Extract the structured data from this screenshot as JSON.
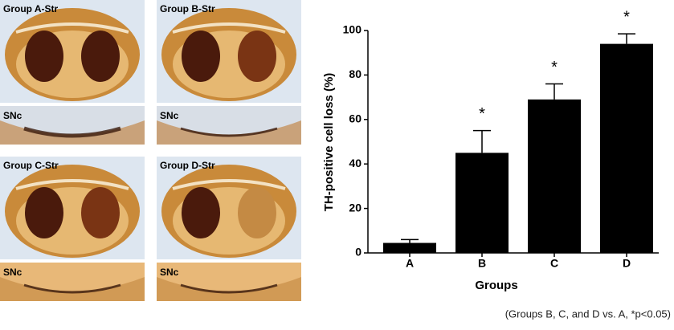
{
  "panels": [
    {
      "label": "Group A-Str",
      "sub": "SNc"
    },
    {
      "label": "Group B-Str",
      "sub": "SNc"
    },
    {
      "label": "Group C-Str",
      "sub": "SNc"
    },
    {
      "label": "Group D-Str",
      "sub": "SNc"
    }
  ],
  "chart_data": {
    "type": "bar",
    "categories": [
      "A",
      "B",
      "C",
      "D"
    ],
    "values": [
      4.5,
      45,
      69,
      94
    ],
    "errors": [
      1.5,
      10,
      7,
      4.5
    ],
    "value_labels": [
      null,
      "*",
      "*",
      "*"
    ],
    "color": "#000000",
    "xlabel": "Groups",
    "ylabel": "TH-positive cell loss (%)",
    "ylim": [
      0,
      100
    ],
    "yticks": [
      0,
      20,
      40,
      60,
      80,
      100
    ],
    "annotation": "(Groups B, C, and D vs. A, *p<0.05)"
  }
}
